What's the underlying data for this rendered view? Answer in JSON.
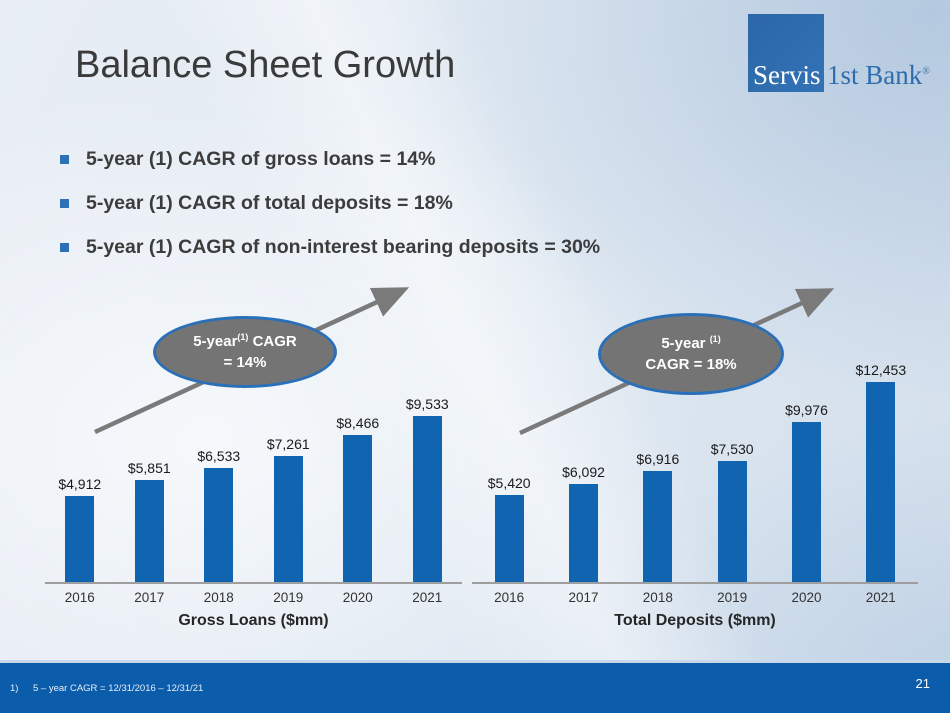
{
  "slide": {
    "title": "Balance Sheet Growth",
    "page_number": "21",
    "footnote_marker": "1)",
    "footnote_text": "5 – year CAGR = 12/31/2016 – 12/31/21"
  },
  "logo": {
    "square_text": "Servis",
    "right_text": "1st Bank",
    "registered_mark": "®"
  },
  "bullets": [
    "5-year (1) CAGR of gross loans = 14%",
    "5-year (1) CAGR of total deposits = 18%",
    "5-year (1) CAGR of non-interest bearing deposits = 30%"
  ],
  "callouts": [
    {
      "line1_main": "5-year",
      "line1_sup": "(1)",
      "line1_rest": "  CAGR",
      "line2": "= 14%"
    },
    {
      "line1_main": "5-year ",
      "line1_sup": "(1)",
      "line1_rest": "",
      "line2": "CAGR = 18%"
    }
  ],
  "chart_data": [
    {
      "type": "bar",
      "title": "Gross Loans ($mm)",
      "categories": [
        "2016",
        "2017",
        "2018",
        "2019",
        "2020",
        "2021"
      ],
      "values": [
        4912,
        5851,
        6533,
        7261,
        8466,
        9533
      ],
      "labels": [
        "$4,912",
        "$5,851",
        "$6,533",
        "$7,261",
        "$8,466",
        "$9,533"
      ],
      "bar_color": "#1064b0",
      "ylim": [
        0,
        10000
      ],
      "grid": false,
      "legend": false,
      "annotation": "5-year (1) CAGR = 14%"
    },
    {
      "type": "bar",
      "title": "Total Deposits ($mm)",
      "categories": [
        "2016",
        "2017",
        "2018",
        "2019",
        "2020",
        "2021"
      ],
      "values": [
        5420,
        6092,
        6916,
        7530,
        9976,
        12453
      ],
      "labels": [
        "$5,420",
        "$6,092",
        "$6,916",
        "$7,530",
        "$9,976",
        "$12,453"
      ],
      "bar_color": "#1064b0",
      "ylim": [
        0,
        13000
      ],
      "grid": false,
      "legend": false,
      "annotation": "5-year (1) CAGR = 18%"
    }
  ],
  "colors": {
    "bar_blue": "#1064b0",
    "footer_blue": "#0b5dab",
    "logo_blue": "#2e6dad",
    "ellipse_fill": "#747474",
    "ellipse_border": "#2a70b8",
    "arrow_gray": "#7a7a7a",
    "bullet_marker_blue": "#2d70b5",
    "title_gray": "#3a3a3a"
  }
}
